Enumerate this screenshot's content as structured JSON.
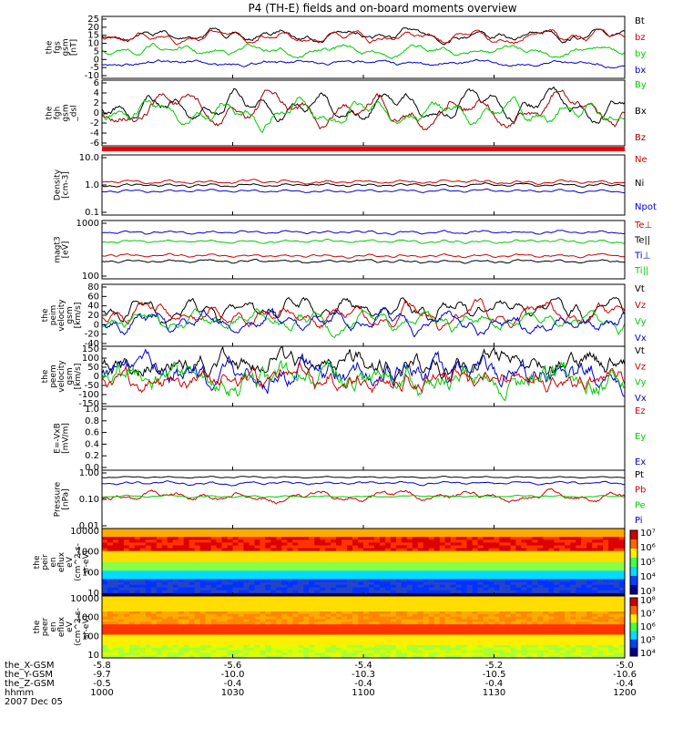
{
  "title": "P4 (TH-E) fields and on-board moments overview",
  "colors": {
    "black": "#000000",
    "red": "#d00000",
    "darkred": "#a00000",
    "green": "#00cc00",
    "blue": "#0000d0"
  },
  "panels": [
    {
      "id": "fgs",
      "ylabel": [
        "the",
        "fgs",
        "gsm",
        "[nT]"
      ],
      "ticks": [
        "25",
        "20",
        "15",
        "10",
        "5",
        "0",
        "-5",
        "-10"
      ],
      "legend": [
        {
          "name": "Bt",
          "color": "#000000"
        },
        {
          "name": "bz",
          "color": "#d00000"
        },
        {
          "name": "by",
          "color": "#00cc00"
        },
        {
          "name": "bx",
          "color": "#0000d0"
        }
      ]
    },
    {
      "id": "fgh",
      "ylabel": [
        "the",
        "fgh",
        "gsm",
        "_dsl"
      ],
      "ticks": [
        "6",
        "4",
        "2",
        "0",
        "-2",
        "-4",
        "-6"
      ],
      "legend": [
        {
          "name": "By",
          "color": "#00cc00"
        },
        {
          "name": "Bx",
          "color": "#000000"
        },
        {
          "name": "Bz",
          "color": "#a00000"
        }
      ]
    },
    {
      "id": "density",
      "ylabel": [
        "Density",
        "[cm-3]"
      ],
      "ticks": [
        "10.0",
        "1.0",
        "0.1"
      ],
      "legend": [
        {
          "name": "Ne",
          "color": "#d00000"
        },
        {
          "name": "Ni",
          "color": "#000000"
        },
        {
          "name": "Npot",
          "color": "#0000d0"
        }
      ]
    },
    {
      "id": "temp",
      "ylabel": [
        "magt3",
        "[eV]"
      ],
      "ticks": [
        "1000",
        "100"
      ],
      "legend": [
        {
          "name": "Te⊥",
          "color": "#d00000"
        },
        {
          "name": "Te||",
          "color": "#000000"
        },
        {
          "name": "Ti⊥",
          "color": "#0000d0"
        },
        {
          "name": "Ti||",
          "color": "#00cc00"
        }
      ]
    },
    {
      "id": "peim",
      "ylabel": [
        "the",
        "peim",
        "velocity",
        "gsm",
        "[km/s]"
      ],
      "ticks": [
        "80",
        "60",
        "40",
        "20",
        "0",
        "-20",
        "-40"
      ],
      "legend": [
        {
          "name": "Vt",
          "color": "#000000"
        },
        {
          "name": "Vz",
          "color": "#d00000"
        },
        {
          "name": "Vy",
          "color": "#00cc00"
        },
        {
          "name": "Vx",
          "color": "#0000d0"
        }
      ]
    },
    {
      "id": "peem",
      "ylabel": [
        "the",
        "peem",
        "velocity",
        "gsm",
        "[km/s]"
      ],
      "ticks": [
        "150",
        "100",
        "50",
        "0",
        "-50",
        "-100",
        "-150"
      ],
      "legend": [
        {
          "name": "Vt",
          "color": "#000000"
        },
        {
          "name": "Vz",
          "color": "#d00000"
        },
        {
          "name": "Vy",
          "color": "#00cc00"
        },
        {
          "name": "Vx",
          "color": "#0000d0"
        }
      ]
    },
    {
      "id": "efield",
      "ylabel": [
        "E=-VxB",
        "[mV/m]"
      ],
      "ticks": [
        "1.0",
        "0.8",
        "0.6",
        "0.4",
        "0.2",
        "0.0"
      ],
      "legend": [
        {
          "name": "Ez",
          "color": "#d00000"
        },
        {
          "name": "Ey",
          "color": "#00cc00"
        },
        {
          "name": "Ex",
          "color": "#0000d0"
        }
      ]
    },
    {
      "id": "pressure",
      "ylabel": [
        "Pressure",
        "[nPa]"
      ],
      "ticks": [
        "1.00",
        "0.10",
        "0.01"
      ],
      "legend": [
        {
          "name": "Pt",
          "color": "#000000"
        },
        {
          "name": "Pb",
          "color": "#d00000"
        },
        {
          "name": "Pe",
          "color": "#00cc00"
        },
        {
          "name": "Pi",
          "color": "#0000d0"
        }
      ]
    },
    {
      "id": "peir",
      "ylabel": [
        "the",
        "peir",
        "en",
        "eflux",
        "eV",
        "(cm^2-s-",
        "sr-eV)"
      ],
      "ticks": [
        "10000",
        "1000",
        "100",
        "10"
      ],
      "colorbar": [
        "10⁷",
        "10⁶",
        "10⁵",
        "10⁴",
        "10³"
      ]
    },
    {
      "id": "peer",
      "ylabel": [
        "the",
        "peer",
        "en",
        "eflux",
        "eV",
        "(cm^2-s-",
        "sr-eV)"
      ],
      "ticks": [
        "10000",
        "1000",
        "100",
        "10"
      ],
      "colorbar": [
        "10⁸",
        "10⁷",
        "10⁶",
        "10⁵",
        "10⁴"
      ]
    }
  ],
  "xaxis": {
    "labels": [
      "the_X-GSM",
      "the_Y-GSM",
      "the_Z-GSM",
      "hhmm",
      "2007 Dec 05"
    ],
    "columns": [
      [
        "-5.8",
        "-9.7",
        "-0.5",
        "1000"
      ],
      [
        "-5.6",
        "-10.0",
        "-0.4",
        "1030"
      ],
      [
        "-5.4",
        "-10.3",
        "-0.4",
        "1100"
      ],
      [
        "-5.2",
        "-10.5",
        "-0.4",
        "1130"
      ],
      [
        "-5.0",
        "-10.6",
        "-0.4",
        "1200"
      ]
    ]
  }
}
